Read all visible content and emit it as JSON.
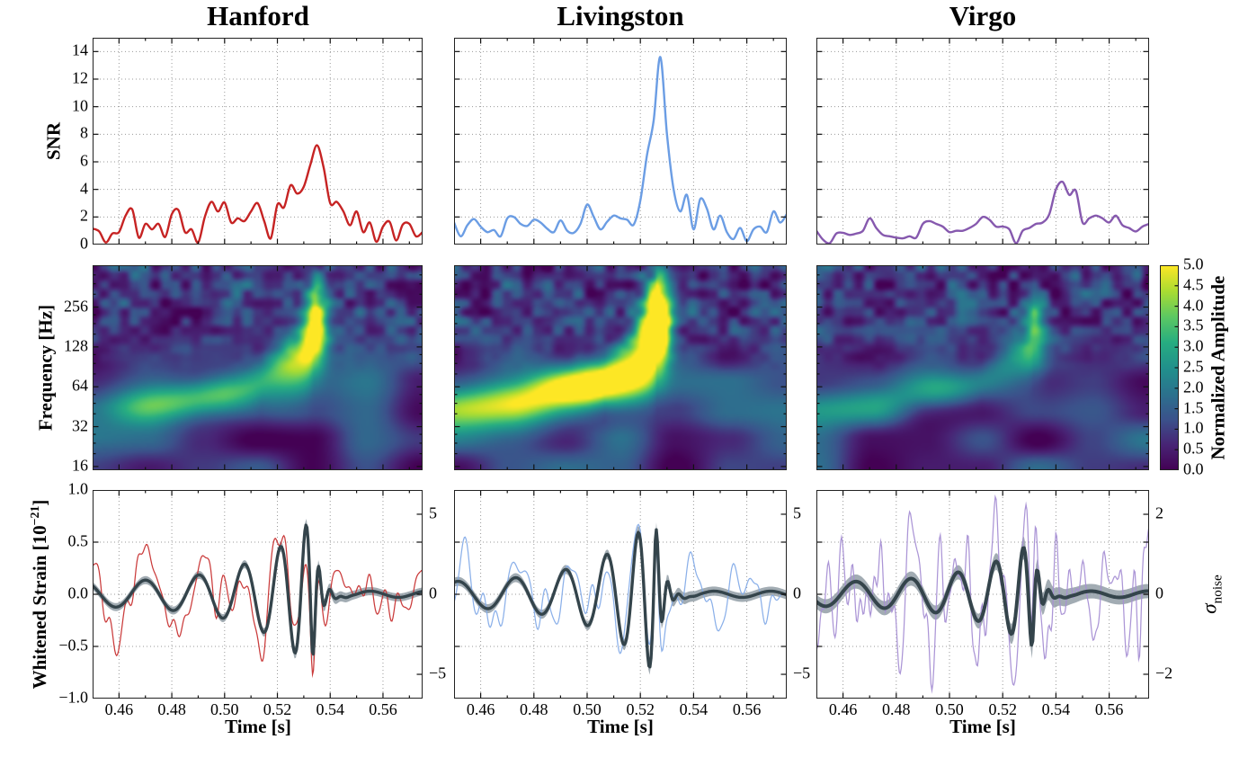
{
  "figure": {
    "kind": "gravitational-wave three-detector event figure",
    "background": "#ffffff"
  },
  "columns": [
    {
      "title": "Hanford",
      "accent": "#c62323"
    },
    {
      "title": "Livingston",
      "accent": "#6b9de4"
    },
    {
      "title": "Virgo",
      "accent": "#8659ae"
    }
  ],
  "labels": {
    "snr_y": "SNR",
    "freq_y": "Frequency [Hz]",
    "strain_y_pre": "Whitened Strain  [10",
    "strain_y_sup": "−21",
    "strain_y_post": "]",
    "time_x": "Time [s]",
    "colorbar": "Normalized Amplitude",
    "sigma": "σ",
    "sigma_sub": "noise"
  },
  "axes": {
    "time": {
      "label": "Time [s]",
      "range": [
        0.45,
        0.575
      ],
      "major_ticks": [
        0.46,
        0.48,
        0.5,
        0.52,
        0.54,
        0.56
      ],
      "tick_labels": [
        "0.46",
        "0.48",
        "0.50",
        "0.52",
        "0.54",
        "0.56"
      ],
      "minor_tick_step": 0.01,
      "grid": "dotted"
    },
    "snr": {
      "label": "SNR",
      "range": [
        0,
        15
      ],
      "ticks": [
        0,
        2,
        4,
        6,
        8,
        10,
        12,
        14
      ],
      "grid": "dotted"
    },
    "frequency": {
      "label": "Frequency [Hz]",
      "scale": "log",
      "range": [
        15,
        530
      ],
      "ticks": [
        16,
        32,
        64,
        128,
        256
      ]
    },
    "strain": {
      "label": "Whitened Strain [10−21]",
      "range": [
        -1.0,
        1.0
      ],
      "ticks": [
        1.0,
        0.5,
        0.0,
        -0.5,
        -1.0
      ],
      "tick_labels": [
        "1.0",
        "0.5",
        "0.0",
        "−0.5",
        "−1.0"
      ],
      "grid_values": [
        0.5,
        0.0,
        -0.5
      ]
    },
    "sigma_hanford_livingston": {
      "label": "σ_noise",
      "ticks": [
        5,
        0,
        -5
      ],
      "tick_labels": [
        "5",
        "0",
        "−5"
      ],
      "strain_per_sigma": 0.1535
    },
    "sigma_virgo": {
      "label": "σ_noise",
      "ticks": [
        2,
        0,
        -2
      ],
      "tick_labels": [
        "2",
        "0",
        "−2"
      ],
      "strain_per_sigma": 0.3835
    }
  },
  "colorbar": {
    "label": "Normalized Amplitude",
    "colormap": "viridis",
    "range": [
      0,
      5
    ],
    "ticks": [
      0.0,
      0.5,
      1.0,
      1.5,
      2.0,
      2.5,
      3.0,
      3.5,
      4.0,
      4.5,
      5.0
    ],
    "tick_labels": [
      "0.0",
      "0.5",
      "1.0",
      "1.5",
      "2.0",
      "2.5",
      "3.0",
      "3.5",
      "4.0",
      "4.5",
      "5.0"
    ]
  },
  "chart_data": [
    {
      "panel": "snr-hanford",
      "type": "line",
      "detector": "Hanford",
      "color": "#c62323",
      "xlabel": "Time [s]",
      "ylabel": "SNR",
      "xlim": [
        0.45,
        0.575
      ],
      "ylim": [
        0,
        15
      ],
      "x_start": 0.45,
      "x_step": 0.0025,
      "peak": {
        "t": 0.535,
        "snr": 7.2
      },
      "values": [
        1.15,
        0.95,
        0.15,
        0.8,
        0.9,
        2.1,
        2.55,
        0.5,
        1.5,
        1.1,
        1.5,
        0.55,
        2.2,
        2.5,
        0.9,
        1.1,
        0.15,
        2.0,
        3.1,
        2.4,
        3.05,
        1.6,
        1.9,
        1.7,
        2.4,
        3.0,
        1.7,
        0.45,
        2.9,
        2.7,
        4.3,
        3.7,
        4.2,
        5.8,
        7.2,
        5.6,
        3.0,
        3.1,
        2.4,
        1.4,
        2.4,
        0.9,
        1.6,
        0.2,
        1.3,
        1.65,
        0.3,
        1.45,
        1.5,
        0.6,
        0.9
      ]
    },
    {
      "panel": "snr-livingston",
      "type": "line",
      "detector": "Livingston",
      "color": "#6b9de4",
      "xlabel": "Time [s]",
      "ylabel": "SNR",
      "xlim": [
        0.45,
        0.575
      ],
      "ylim": [
        0,
        15
      ],
      "x_start": 0.45,
      "x_step": 0.0025,
      "peak": {
        "t": 0.5275,
        "snr": 13.6
      },
      "values": [
        1.6,
        0.6,
        1.4,
        1.85,
        1.3,
        0.9,
        1.05,
        0.6,
        1.9,
        2.0,
        1.5,
        1.35,
        1.8,
        1.6,
        1.15,
        0.9,
        1.75,
        1.0,
        0.85,
        1.5,
        2.9,
        2.0,
        1.1,
        1.65,
        2.1,
        1.9,
        1.8,
        1.45,
        3.2,
        6.5,
        9.0,
        13.6,
        8.0,
        4.0,
        2.4,
        3.6,
        1.1,
        3.3,
        2.6,
        1.1,
        2.1,
        0.9,
        0.4,
        1.2,
        0.25,
        1.1,
        1.3,
        0.9,
        2.4,
        1.6,
        2.2
      ]
    },
    {
      "panel": "snr-virgo",
      "type": "line",
      "detector": "Virgo",
      "color": "#8659ae",
      "xlabel": "Time [s]",
      "ylabel": "SNR",
      "xlim": [
        0.45,
        0.575
      ],
      "ylim": [
        0,
        15
      ],
      "x_start": 0.45,
      "x_step": 0.0025,
      "peak": {
        "t": 0.5425,
        "snr": 4.55
      },
      "values": [
        1.0,
        0.35,
        0.1,
        0.8,
        0.85,
        0.7,
        0.8,
        1.0,
        1.9,
        1.2,
        0.7,
        0.6,
        0.5,
        0.45,
        0.6,
        0.5,
        1.5,
        1.7,
        1.5,
        1.3,
        0.9,
        1.0,
        1.0,
        1.2,
        1.5,
        2.0,
        1.8,
        1.3,
        1.3,
        1.1,
        0.1,
        1.0,
        1.2,
        1.5,
        1.6,
        2.2,
        4.0,
        4.55,
        3.6,
        3.9,
        1.6,
        1.9,
        2.1,
        1.9,
        1.6,
        2.1,
        1.4,
        1.2,
        0.95,
        1.3,
        1.5
      ]
    },
    {
      "panel": "spectrogram-hanford",
      "type": "heatmap",
      "detector": "Hanford",
      "xlim": [
        0.45,
        0.575
      ],
      "flim_hz": [
        15,
        530
      ],
      "yscale": "log",
      "zlim": [
        0,
        5
      ],
      "colormap": "viridis",
      "chirp": {
        "t_merger": 0.534,
        "f_coef": 16.5,
        "track_amplitude": 3.3,
        "track_octave_width": 0.5,
        "blob_amplitude": 2.6,
        "blob_freq_hz": 210
      },
      "noise_seed": 11
    },
    {
      "panel": "spectrogram-livingston",
      "type": "heatmap",
      "detector": "Livingston",
      "xlim": [
        0.45,
        0.575
      ],
      "flim_hz": [
        15,
        530
      ],
      "yscale": "log",
      "zlim": [
        0,
        5
      ],
      "colormap": "viridis",
      "chirp": {
        "t_merger": 0.5265,
        "f_coef": 16.5,
        "track_amplitude": 5.0,
        "track_octave_width": 0.62,
        "blob_amplitude": 3.2,
        "blob_freq_hz": 230
      },
      "noise_seed": 23
    },
    {
      "panel": "spectrogram-virgo",
      "type": "heatmap",
      "detector": "Virgo",
      "xlim": [
        0.45,
        0.575
      ],
      "flim_hz": [
        15,
        530
      ],
      "yscale": "log",
      "zlim": [
        0,
        5
      ],
      "colormap": "viridis",
      "chirp": {
        "t_merger": 0.532,
        "f_coef": 16.5,
        "track_amplitude": 1.6,
        "track_octave_width": 0.45,
        "blob_amplitude": 0.9,
        "blob_freq_hz": 140
      },
      "noise_seed": 37
    },
    {
      "panel": "strain-hanford",
      "type": "line_with_band",
      "detector": "Hanford",
      "xlim": [
        0.45,
        0.575
      ],
      "ylim": [
        -1,
        1
      ],
      "y_units": "10^-21 strain",
      "right_ticks_sigma": [
        5,
        0,
        -5
      ],
      "strain_per_sigma": 0.1535,
      "data_color": "#c73030",
      "model_color": "#34444b",
      "band_color": "#929ea6",
      "model": {
        "t_merger": 0.533,
        "peak_amplitude": 0.62,
        "phase_offset": 0.0,
        "ringdown_freq_hz": 235
      },
      "band_halfwidth": 0.048,
      "model_mix": 0.97,
      "noise": {
        "level": 0.065,
        "f_max_hz": 300,
        "seed": 101
      }
    },
    {
      "panel": "strain-livingston",
      "type": "line_with_band",
      "detector": "Livingston",
      "xlim": [
        0.45,
        0.575
      ],
      "ylim": [
        -1,
        1
      ],
      "y_units": "10^-21 strain",
      "right_ticks_sigma": [
        5,
        0,
        -5
      ],
      "strain_per_sigma": 0.1535,
      "data_color": "#85ace8",
      "model_color": "#34444b",
      "band_color": "#929ea6",
      "model": {
        "t_merger": 0.5255,
        "peak_amplitude": 0.66,
        "phase_offset": 3.1,
        "ringdown_freq_hz": 235
      },
      "band_halfwidth": 0.054,
      "model_mix": 0.97,
      "noise": {
        "level": 0.06,
        "f_max_hz": 280,
        "seed": 202
      }
    },
    {
      "panel": "strain-virgo",
      "type": "line_with_band",
      "detector": "Virgo",
      "xlim": [
        0.45,
        0.575
      ],
      "ylim": [
        -1,
        1
      ],
      "y_units": "10^-21 strain",
      "right_ticks_sigma": [
        2,
        0,
        -2
      ],
      "strain_per_sigma": 0.3835,
      "data_color": "#a78fd4",
      "model_color": "#34444b",
      "band_color": "#929ea6",
      "model": {
        "t_merger": 0.531,
        "peak_amplitude": 0.4,
        "phase_offset": 0.9,
        "ringdown_freq_hz": 235
      },
      "band_halfwidth": 0.085,
      "model_mix": 0.85,
      "noise": {
        "level": 0.16,
        "f_max_hz": 400,
        "seed": 303
      }
    }
  ]
}
